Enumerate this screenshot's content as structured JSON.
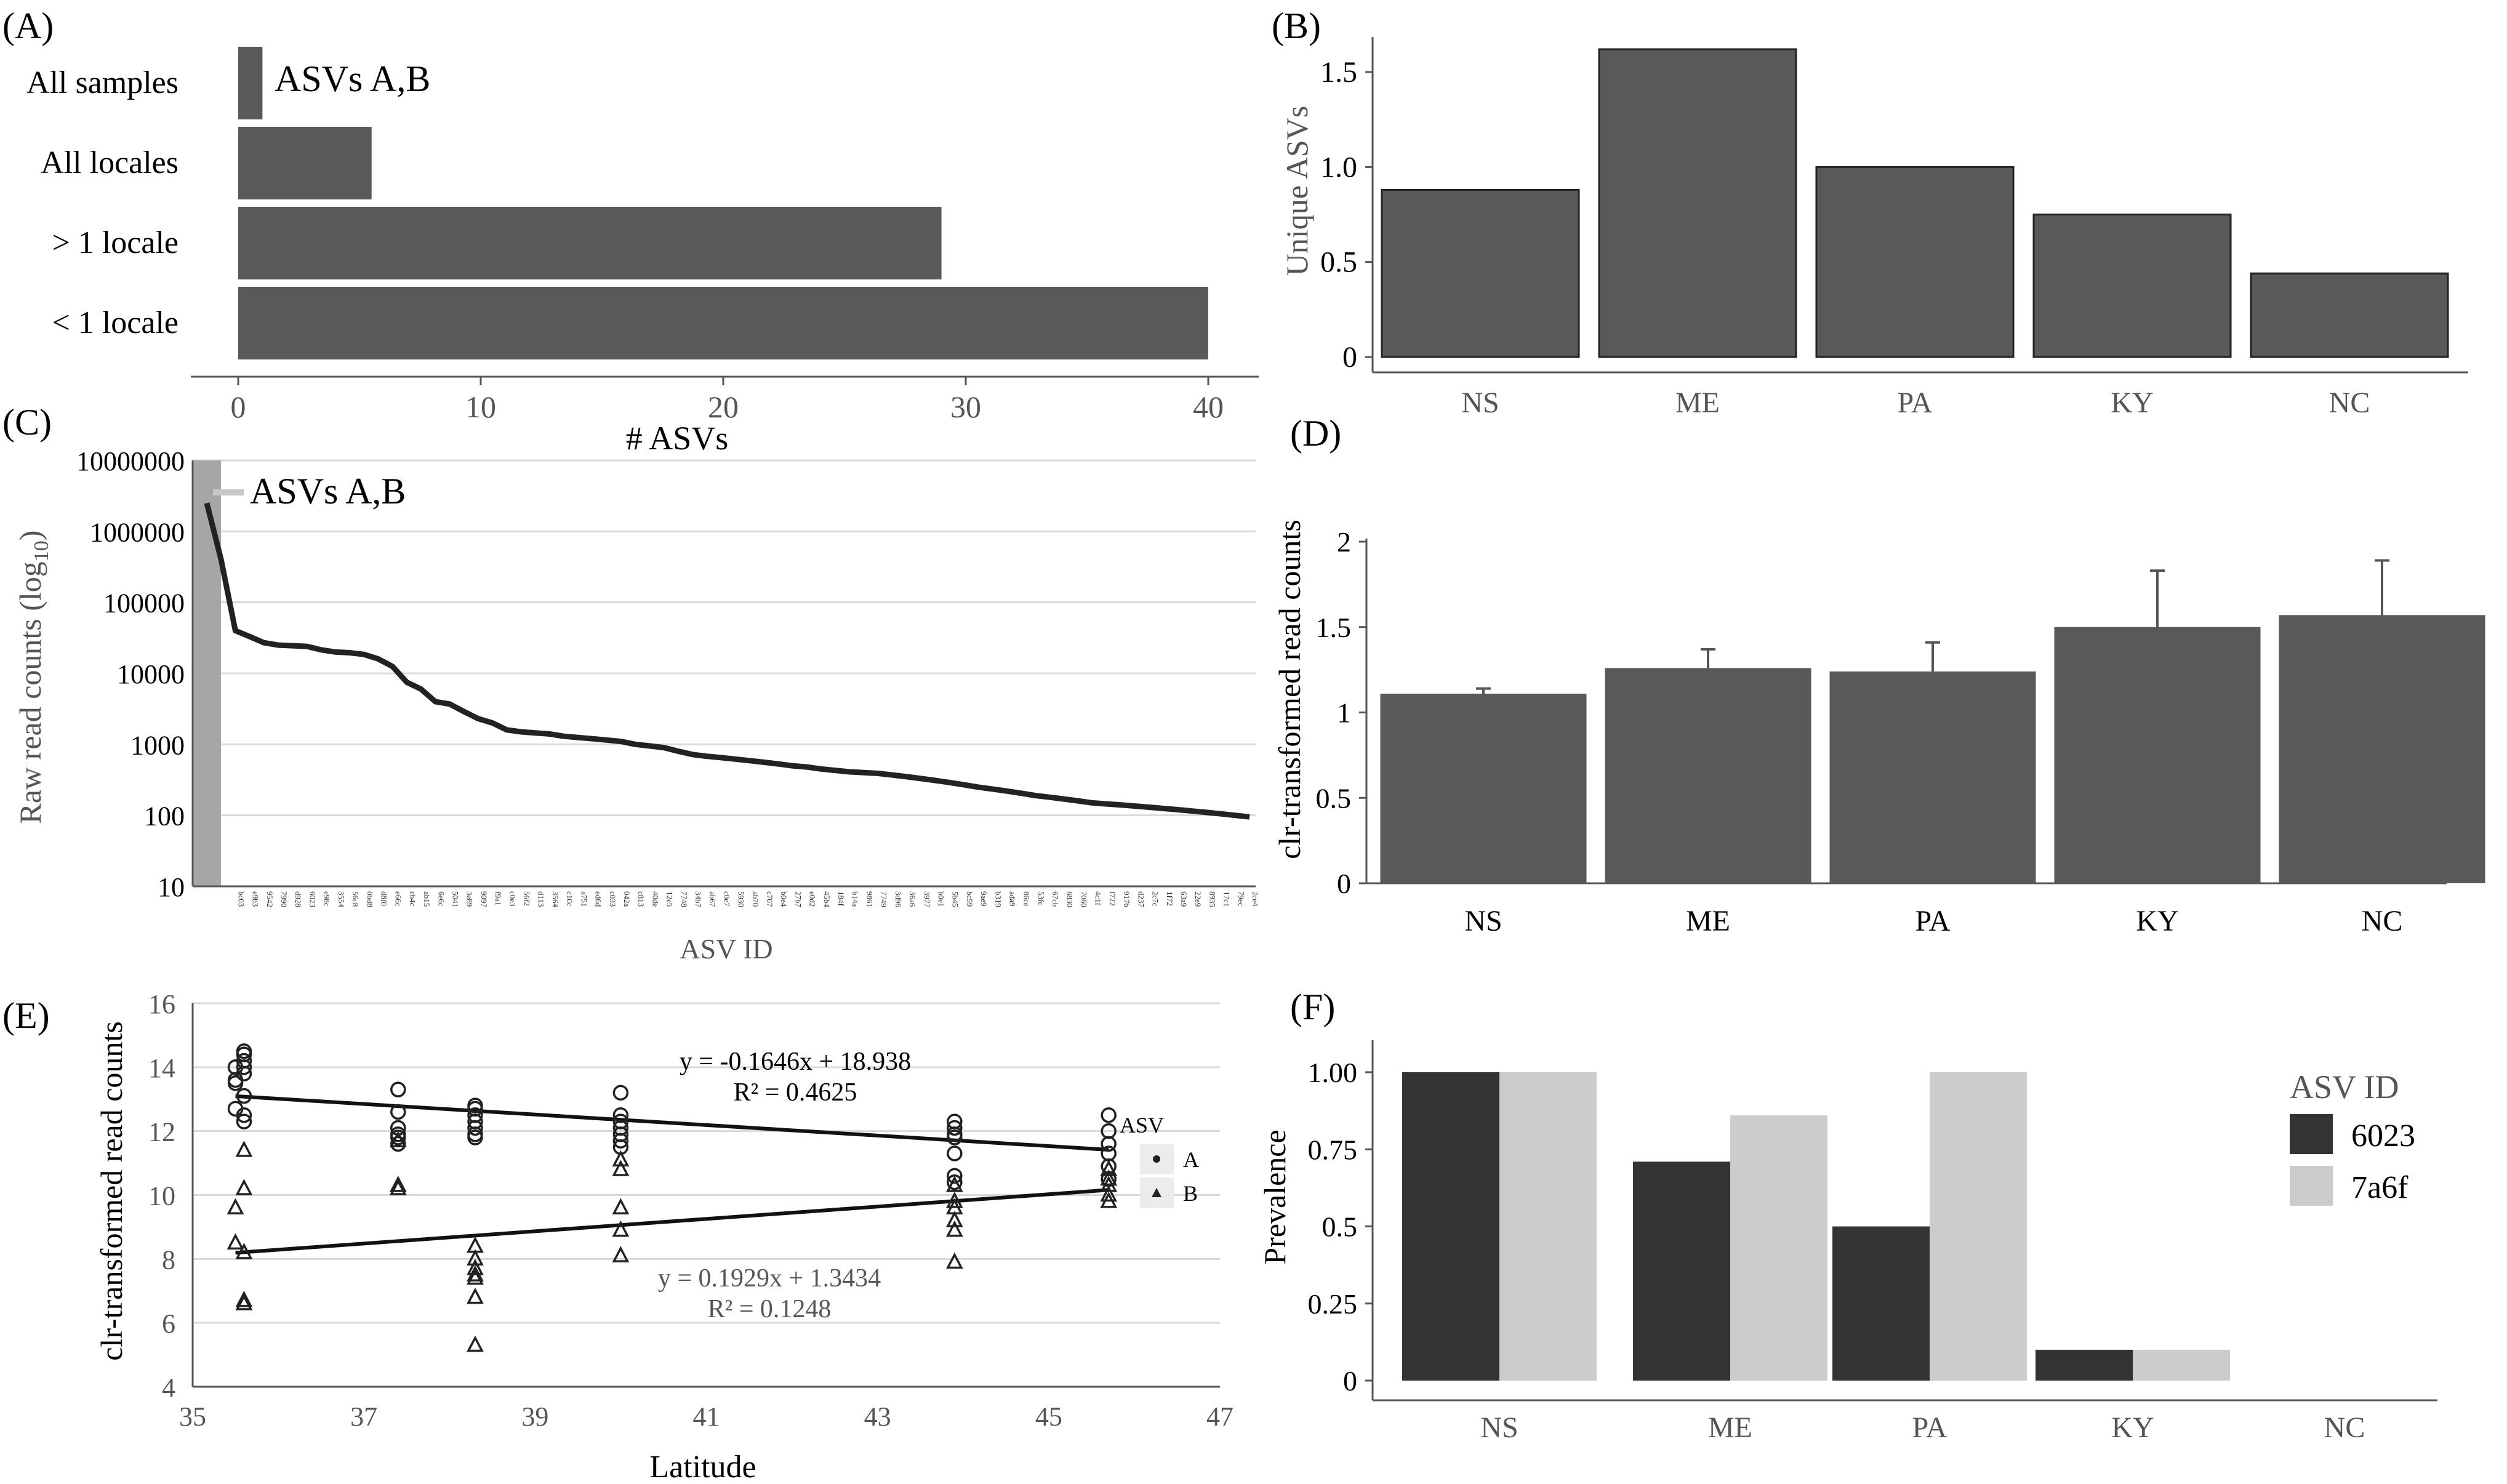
{
  "chart_data": [
    {
      "panel": "A",
      "type": "bar",
      "orientation": "horizontal",
      "categories": [
        "All samples",
        "All locales",
        "> 1 locale",
        "< 1 locale"
      ],
      "values": [
        1,
        5.5,
        29,
        40
      ],
      "annotation": "ASVs A,B",
      "xlabel": "# ASVs",
      "xticks": [
        "0",
        "10",
        "20",
        "30",
        "40"
      ],
      "xlim": [
        -2,
        42
      ]
    },
    {
      "panel": "B",
      "type": "bar",
      "categories": [
        "NS",
        "ME",
        "PA",
        "KY",
        "NC"
      ],
      "values": [
        0.88,
        1.62,
        1.0,
        0.75,
        0.44
      ],
      "ylabel": "Unique ASVs",
      "yticks": [
        "0",
        "0.5",
        "1.0",
        "1.5"
      ],
      "ylim": [
        -0.05,
        1.72
      ]
    },
    {
      "panel": "C",
      "type": "line",
      "yscale": "log10",
      "ylabel_main": "Raw read counts (log",
      "ylabel_sub": "10",
      "ylabel_end": ")",
      "xlabel": "ASV ID",
      "annotation": "ASVs A,B",
      "yticks": [
        "10",
        "100",
        "1000",
        "10000",
        "100000",
        "1000000",
        "10000000"
      ],
      "ylim": [
        10,
        10000000
      ],
      "highlight_ids": [
        "6023",
        "7a6f"
      ],
      "x": [
        "6023",
        "7a6f",
        "bc03",
        "e9b3",
        "9542",
        "7990",
        "d928",
        "6023",
        "e98c",
        "3554",
        "56c8",
        "0bd8",
        "d8f0",
        "e66c",
        "eb4c",
        "ab15",
        "6e6c",
        "5041",
        "3e89",
        "9097",
        "f9a1",
        "c0e3",
        "56f2",
        "d113",
        "3564",
        "c10c",
        "a751",
        "ed6d",
        "c033",
        "042a",
        "c813",
        "40de",
        "12e5",
        "7748",
        "34b7",
        "ab67",
        "c0e7",
        "5930",
        "ab70",
        "c707",
        "b0e4",
        "27b7",
        "e0d2",
        "45b4",
        "184f",
        "b14a",
        "9861",
        "7749",
        "3d96",
        "36a6",
        "3977",
        "b0e1",
        "5b45",
        "bc59",
        "9ae9",
        "b319",
        "ada9",
        "86ce",
        "53fc",
        "67cb",
        "6830",
        "7060",
        "4c1f",
        "f722",
        "917b",
        "d237",
        "2c7c",
        "1f72",
        "63a9",
        "22e9",
        "8935",
        "17c1",
        "79ec",
        "2ce4"
      ],
      "values": [
        2500000,
        400000,
        40000,
        33000,
        27000,
        25000,
        24500,
        24000,
        21500,
        20000,
        19500,
        18500,
        16000,
        12500,
        7500,
        6000,
        4000,
        3700,
        2900,
        2300,
        2000,
        1600,
        1500,
        1450,
        1400,
        1300,
        1250,
        1200,
        1150,
        1100,
        1000,
        950,
        900,
        800,
        720,
        680,
        650,
        620,
        590,
        560,
        530,
        500,
        480,
        450,
        430,
        410,
        400,
        390,
        370,
        350,
        330,
        310,
        290,
        270,
        250,
        235,
        220,
        205,
        190,
        180,
        170,
        160,
        150,
        145,
        140,
        135,
        130,
        125,
        120,
        115,
        110,
        105,
        100,
        95
      ]
    },
    {
      "panel": "D",
      "type": "bar",
      "categories": [
        "NS",
        "ME",
        "PA",
        "KY",
        "NC"
      ],
      "values": [
        1.11,
        1.26,
        1.24,
        1.5,
        1.57
      ],
      "errors": [
        0.03,
        0.11,
        0.17,
        0.33,
        0.32
      ],
      "ylabel": "clr-transformed read counts",
      "yticks": [
        "0",
        "0.5",
        "1",
        "1.5",
        "2"
      ],
      "ylim": [
        0,
        2
      ]
    },
    {
      "panel": "E",
      "type": "scatter",
      "xlabel": "Latitude",
      "ylabel": "clr-transformed read counts",
      "xticks": [
        "35",
        "37",
        "39",
        "41",
        "43",
        "45",
        "47"
      ],
      "yticks": [
        "4",
        "6",
        "8",
        "10",
        "12",
        "14",
        "16"
      ],
      "xlim": [
        35,
        47
      ],
      "ylim": [
        4,
        16
      ],
      "legend_title": "ASV",
      "series": [
        {
          "name": "A",
          "marker": "circle",
          "x": [
            35.5,
            35.5,
            35.5,
            35.5,
            35.6,
            35.6,
            35.6,
            35.6,
            35.6,
            35.6,
            35.6,
            35.6,
            37.4,
            37.4,
            37.4,
            37.4,
            37.4,
            37.4,
            38.3,
            38.3,
            38.3,
            38.3,
            38.3,
            38.3,
            38.3,
            40.0,
            40.0,
            40.0,
            40.0,
            40.0,
            40.0,
            40.0,
            43.9,
            43.9,
            43.9,
            43.9,
            43.9,
            43.9,
            43.9,
            45.7,
            45.7,
            45.7,
            45.7,
            45.7,
            45.7
          ],
          "y": [
            13.6,
            13.5,
            12.7,
            14.0,
            14.5,
            14.4,
            14.2,
            14.0,
            13.8,
            13.1,
            12.5,
            12.3,
            13.3,
            12.6,
            12.1,
            11.9,
            11.8,
            11.6,
            12.8,
            12.7,
            12.5,
            12.3,
            12.1,
            11.9,
            11.8,
            13.2,
            12.5,
            12.3,
            12.1,
            11.9,
            11.7,
            11.5,
            12.3,
            12.1,
            11.9,
            11.8,
            11.3,
            10.6,
            10.4,
            12.5,
            12.0,
            11.6,
            11.3,
            10.9,
            10.5
          ]
        },
        {
          "name": "B",
          "marker": "triangle",
          "x": [
            35.5,
            35.5,
            35.6,
            35.6,
            35.6,
            35.6,
            35.6,
            37.4,
            37.4,
            37.4,
            38.3,
            38.3,
            38.3,
            38.3,
            38.3,
            38.3,
            38.3,
            40.0,
            40.0,
            40.0,
            40.0,
            40.0,
            43.9,
            43.9,
            43.9,
            43.9,
            43.9,
            43.9,
            45.7,
            45.7,
            45.7,
            45.7,
            45.7
          ],
          "y": [
            9.6,
            8.5,
            11.4,
            10.2,
            8.2,
            6.7,
            6.6,
            11.7,
            10.3,
            10.2,
            8.4,
            8.0,
            7.7,
            7.5,
            7.4,
            6.8,
            5.3,
            11.1,
            10.8,
            9.6,
            8.9,
            8.1,
            10.3,
            9.8,
            9.6,
            9.2,
            8.9,
            7.9,
            10.8,
            10.5,
            10.3,
            10.0,
            9.8
          ]
        }
      ],
      "trendlines": [
        {
          "series": "A",
          "equation": "y = -0.1646x + 18.938",
          "r2": "R² = 0.4625",
          "slope": -0.1646,
          "intercept": 18.938,
          "x_range": [
            35.5,
            45.7
          ]
        },
        {
          "series": "B",
          "equation": "y = 0.1929x + 1.3434",
          "r2": "R² = 0.1248",
          "slope": 0.1929,
          "intercept": 1.3434,
          "x_range": [
            35.5,
            45.7
          ]
        }
      ]
    },
    {
      "panel": "F",
      "type": "bar",
      "grouped": true,
      "categories": [
        "NS",
        "ME",
        "PA",
        "KY",
        "NC"
      ],
      "series": [
        {
          "name": "6023",
          "color": "#333333",
          "values": [
            1.0,
            0.71,
            0.5,
            0.1,
            0.0
          ]
        },
        {
          "name": "7a6f",
          "color": "#cccccc",
          "values": [
            1.0,
            0.86,
            1.0,
            0.1,
            0.0
          ]
        }
      ],
      "ylabel": "Prevalence",
      "yticks": [
        "0",
        "0.25",
        "0.5",
        "0.75",
        "1.00"
      ],
      "ylim": [
        -0.03,
        1.1
      ],
      "legend_title": "ASV ID"
    }
  ],
  "panels": {
    "A": {
      "label": "(A)"
    },
    "B": {
      "label": "(B)"
    },
    "C": {
      "label": "(C)"
    },
    "D": {
      "label": "(D)"
    },
    "E": {
      "label": "(E)"
    },
    "F": {
      "label": "(F)"
    }
  },
  "colors": {
    "bar": "#595959",
    "dark": "#333333",
    "light": "#cccccc",
    "highlight_band": "#a6a6a6",
    "grid": "#d9d9d9"
  }
}
